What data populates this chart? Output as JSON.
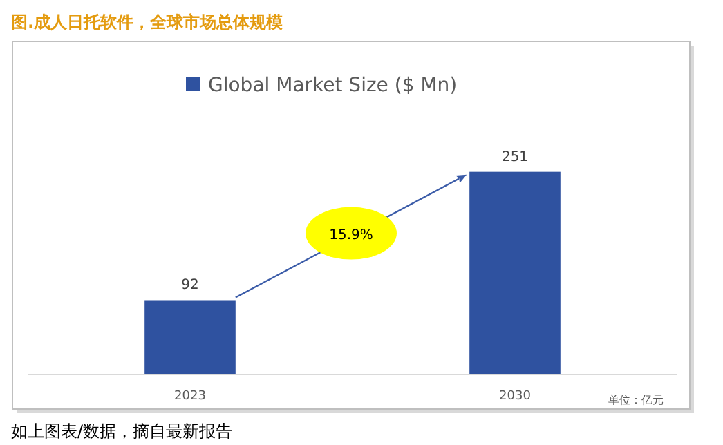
{
  "chart_data": {
    "type": "bar",
    "title": "图.成人日托软件，全球市场总体规模",
    "categories": [
      "2023",
      "2030"
    ],
    "series": [
      {
        "name": "Global Market Size ($ Mn)",
        "color": "#2f52a0",
        "values": [
          92,
          251
        ]
      }
    ],
    "data_labels": true,
    "legend": "top",
    "annotations": [
      "15.9%",
      "单位：亿元",
      "如上图表/数据，摘自最新报告"
    ]
  }
}
